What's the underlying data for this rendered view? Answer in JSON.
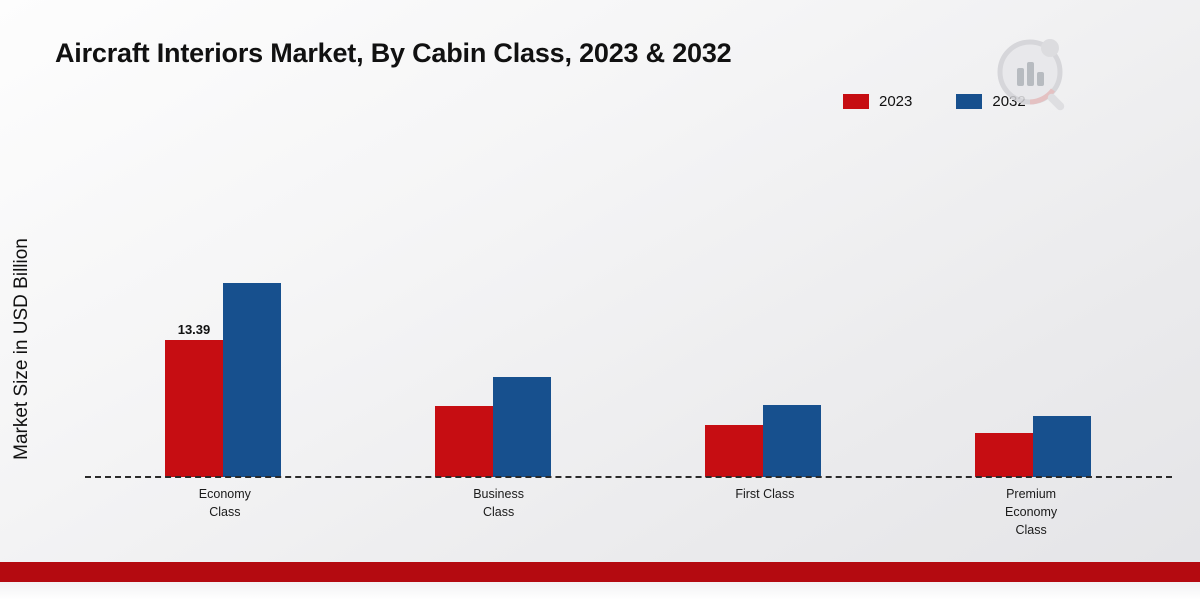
{
  "chart_data": {
    "type": "bar",
    "title": "Aircraft Interiors Market, By Cabin Class, 2023 & 2032",
    "ylabel": "Market Size in USD Billion",
    "xlabel": "",
    "categories": [
      "Economy Class",
      "Business Class",
      "First Class",
      "Premium Economy Class"
    ],
    "series": [
      {
        "name": "2023",
        "color": "#c60d12",
        "values": [
          13.39,
          7.0,
          5.1,
          4.3
        ],
        "labels": [
          "13.39",
          "",
          "",
          ""
        ]
      },
      {
        "name": "2032",
        "color": "#17508e",
        "values": [
          19.0,
          9.8,
          7.1,
          6.0
        ],
        "labels": [
          "",
          "",
          "",
          ""
        ]
      }
    ],
    "ylim": [
      0,
      20
    ],
    "grid": false,
    "legend_position": "top-right",
    "baseline_style": "dashed",
    "units": "USD Billion"
  },
  "branding": {
    "logo_name": "market-research-logo",
    "accent_red": "#b40a10"
  }
}
